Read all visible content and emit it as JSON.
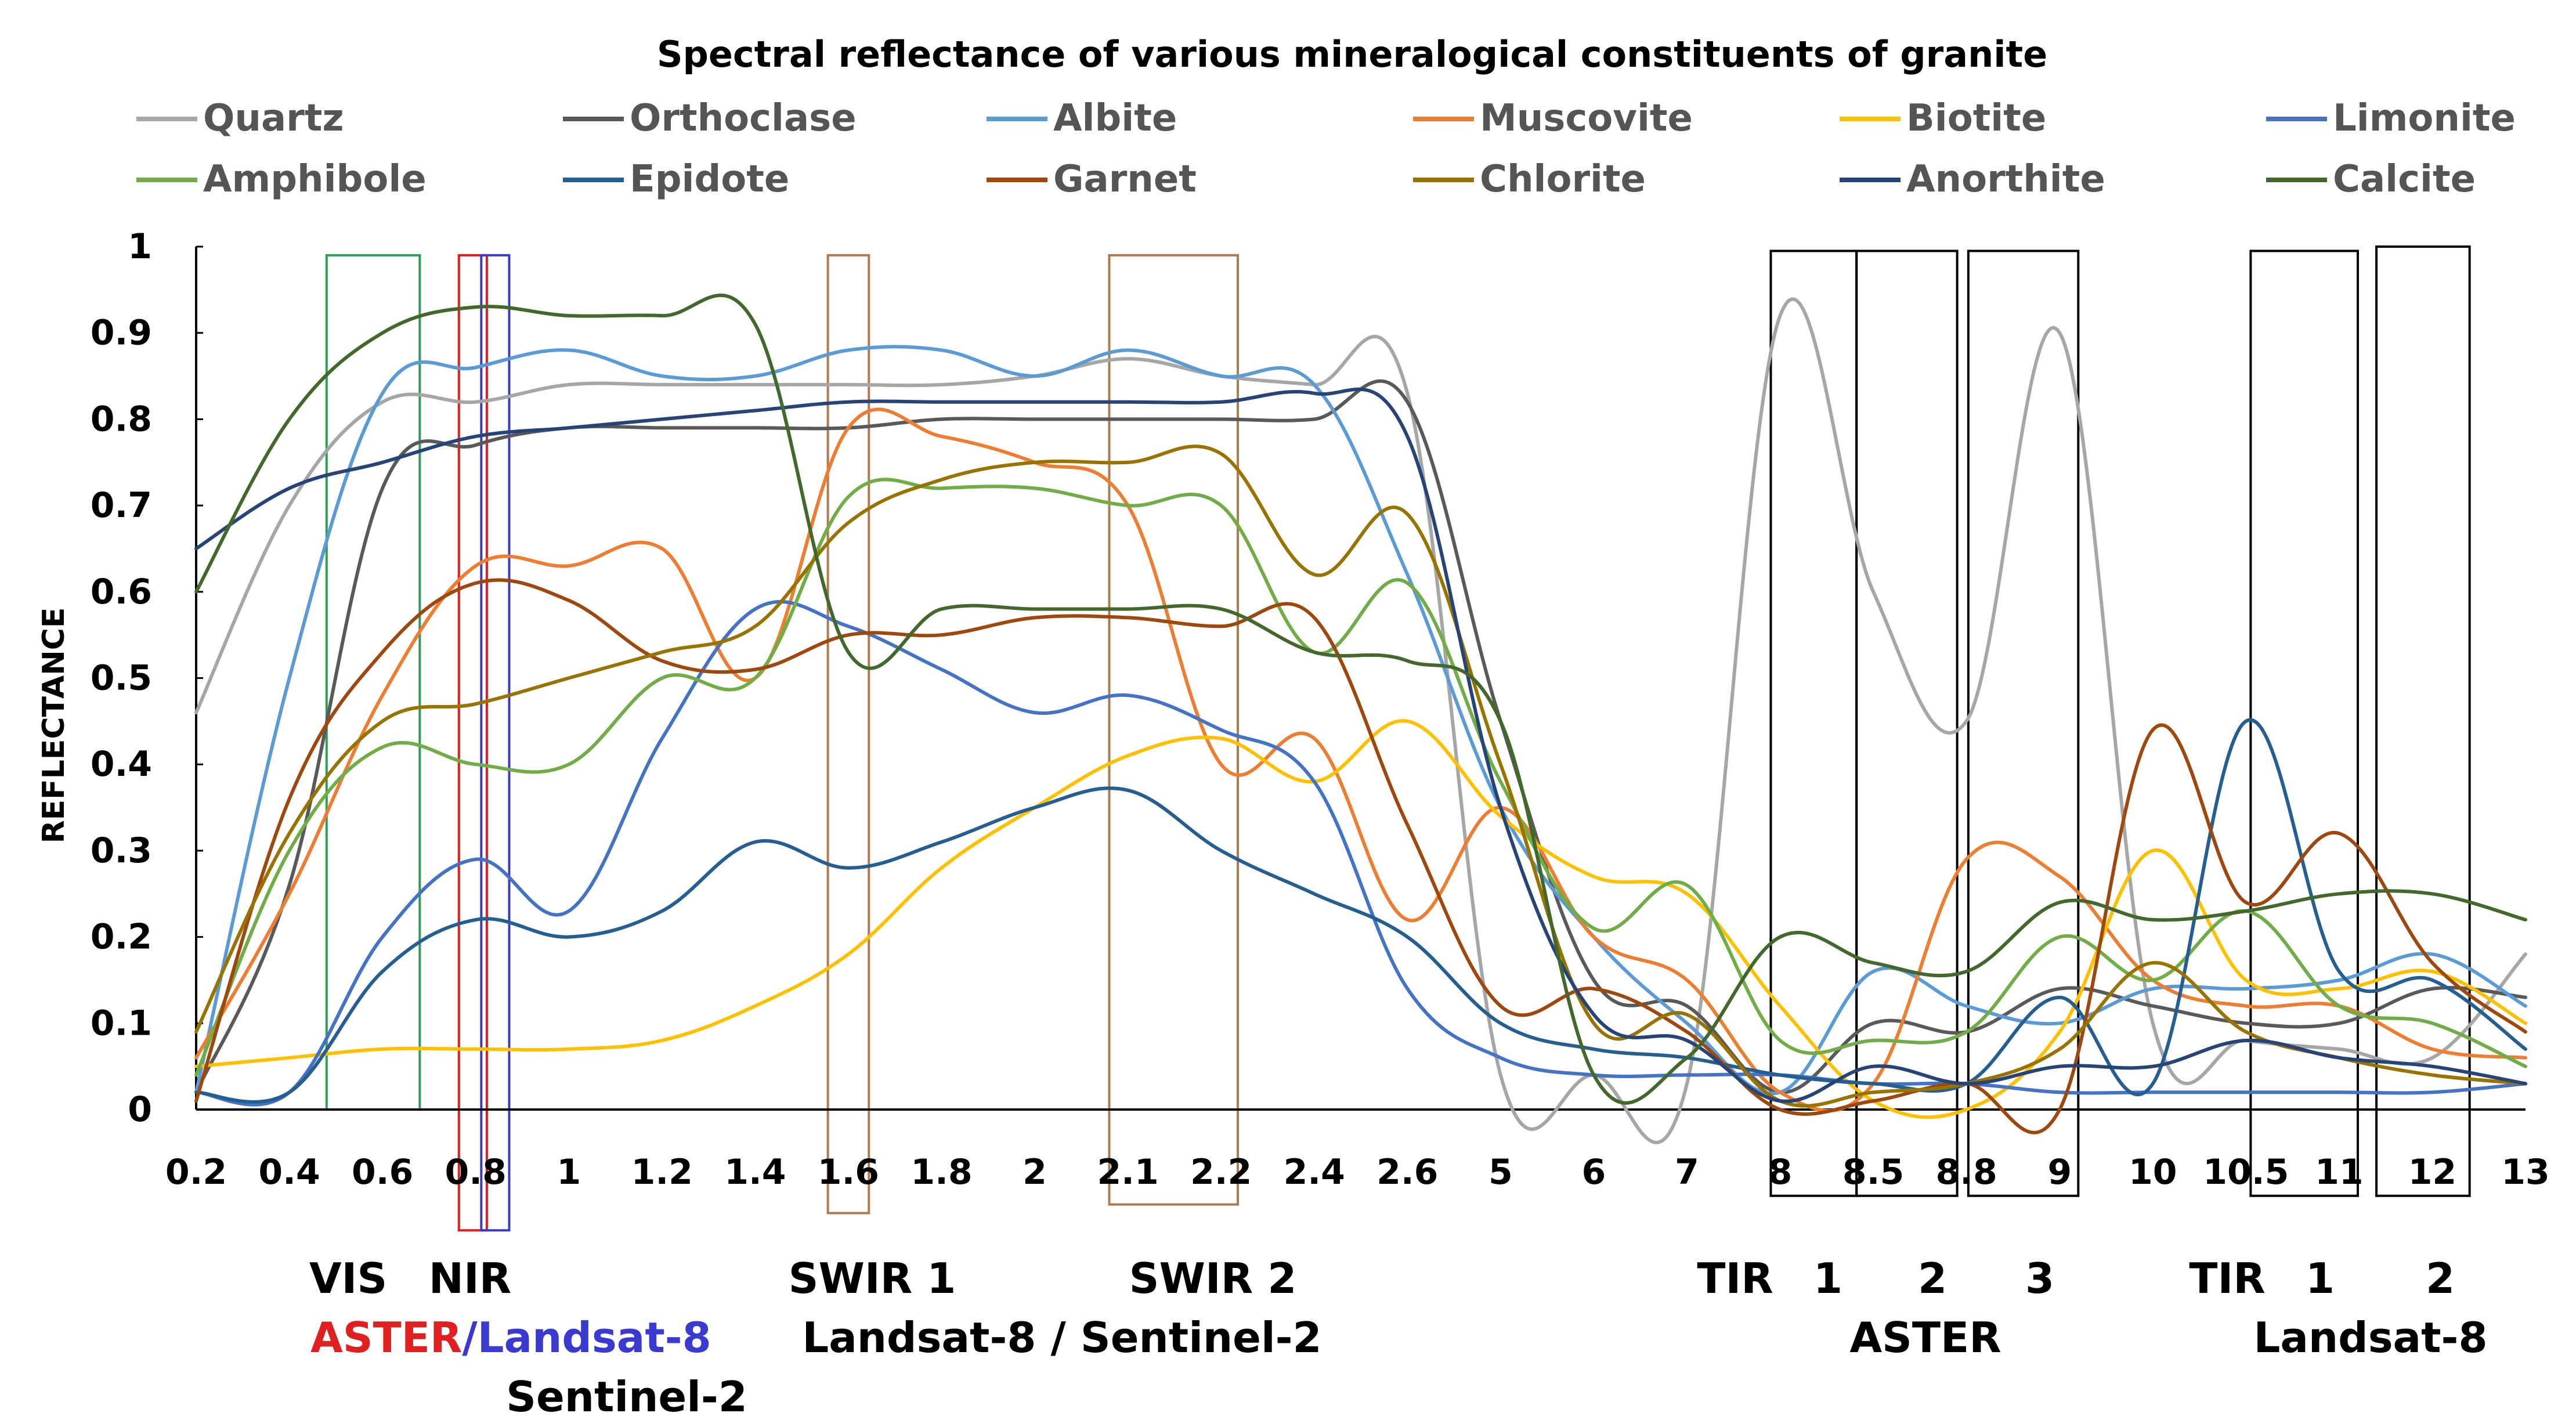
{
  "chart_data": {
    "type": "line",
    "title": "Spectral reflectance of various mineralogical constituents of granite",
    "ylabel": "REFLECTANCE",
    "xlabel": "",
    "ylim": [
      0,
      1
    ],
    "y_ticks": [
      "0",
      "0.1",
      "0.2",
      "0.3",
      "0.4",
      "0.5",
      "0.6",
      "0.7",
      "0.8",
      "0.9",
      "1"
    ],
    "x_ticks": [
      "0.2",
      "0.4",
      "0.6",
      "0.8",
      "1",
      "1.2",
      "1.4",
      "1.6",
      "1.8",
      "2",
      "2.1",
      "2.2",
      "2.4",
      "2.6",
      "5",
      "6",
      "7",
      "8",
      "8.5",
      "8.8",
      "9",
      "10",
      "10.5",
      "11",
      "12",
      "13"
    ],
    "legend_position": "top",
    "grid": false,
    "series": [
      {
        "name": "Quartz",
        "color": "#a6a6a6",
        "values": [
          0.46,
          0.7,
          0.82,
          0.82,
          0.84,
          0.84,
          0.84,
          0.84,
          0.84,
          0.85,
          0.87,
          0.85,
          0.84,
          0.83,
          0.04,
          0.04,
          0.03,
          0.92,
          0.6,
          0.45,
          0.9,
          0.1,
          0.08,
          0.07,
          0.06,
          0.18
        ]
      },
      {
        "name": "Orthoclase",
        "color": "#595959",
        "values": [
          0.02,
          0.26,
          0.72,
          0.77,
          0.79,
          0.79,
          0.79,
          0.79,
          0.8,
          0.8,
          0.8,
          0.8,
          0.8,
          0.82,
          0.45,
          0.15,
          0.12,
          0.02,
          0.1,
          0.09,
          0.14,
          0.12,
          0.1,
          0.1,
          0.14,
          0.13
        ]
      },
      {
        "name": "Albite",
        "color": "#5b9bd5",
        "values": [
          0.02,
          0.5,
          0.83,
          0.86,
          0.88,
          0.85,
          0.85,
          0.88,
          0.88,
          0.85,
          0.88,
          0.85,
          0.84,
          0.62,
          0.35,
          0.2,
          0.1,
          0.02,
          0.16,
          0.12,
          0.1,
          0.14,
          0.14,
          0.15,
          0.18,
          0.12
        ]
      },
      {
        "name": "Muscovite",
        "color": "#ed7d31",
        "values": [
          0.06,
          0.25,
          0.48,
          0.63,
          0.63,
          0.65,
          0.5,
          0.79,
          0.78,
          0.75,
          0.7,
          0.4,
          0.43,
          0.22,
          0.35,
          0.2,
          0.15,
          0.02,
          0.03,
          0.29,
          0.27,
          0.15,
          0.12,
          0.12,
          0.07,
          0.06
        ]
      },
      {
        "name": "Biotite",
        "color": "#ffc000",
        "values": [
          0.05,
          0.06,
          0.07,
          0.07,
          0.07,
          0.08,
          0.12,
          0.18,
          0.28,
          0.35,
          0.41,
          0.43,
          0.38,
          0.45,
          0.34,
          0.27,
          0.25,
          0.12,
          0.01,
          0.0,
          0.09,
          0.3,
          0.15,
          0.14,
          0.16,
          0.1
        ]
      },
      {
        "name": "Limonite",
        "color": "#4472c4",
        "values": [
          0.02,
          0.02,
          0.2,
          0.29,
          0.23,
          0.43,
          0.58,
          0.56,
          0.51,
          0.46,
          0.48,
          0.44,
          0.38,
          0.14,
          0.06,
          0.04,
          0.04,
          0.04,
          0.03,
          0.03,
          0.02,
          0.02,
          0.02,
          0.02,
          0.02,
          0.03
        ]
      },
      {
        "name": "Amphibole",
        "color": "#70ad47",
        "values": [
          0.04,
          0.3,
          0.42,
          0.4,
          0.4,
          0.5,
          0.5,
          0.71,
          0.72,
          0.72,
          0.7,
          0.7,
          0.53,
          0.61,
          0.38,
          0.21,
          0.26,
          0.08,
          0.08,
          0.09,
          0.2,
          0.15,
          0.23,
          0.12,
          0.1,
          0.05
        ]
      },
      {
        "name": "Epidote",
        "color": "#255e91",
        "values": [
          0.02,
          0.02,
          0.16,
          0.22,
          0.2,
          0.23,
          0.31,
          0.28,
          0.31,
          0.35,
          0.37,
          0.3,
          0.25,
          0.2,
          0.1,
          0.07,
          0.06,
          0.04,
          0.03,
          0.03,
          0.13,
          0.03,
          0.45,
          0.16,
          0.15,
          0.07
        ]
      },
      {
        "name": "Garnet",
        "color": "#9e480e",
        "values": [
          0.01,
          0.36,
          0.53,
          0.61,
          0.59,
          0.52,
          0.51,
          0.55,
          0.55,
          0.57,
          0.57,
          0.56,
          0.57,
          0.33,
          0.12,
          0.14,
          0.09,
          0.0,
          0.01,
          0.03,
          0.0,
          0.44,
          0.24,
          0.32,
          0.17,
          0.09
        ]
      },
      {
        "name": "Chlorite",
        "color": "#997300",
        "values": [
          0.09,
          0.32,
          0.45,
          0.47,
          0.5,
          0.53,
          0.56,
          0.68,
          0.73,
          0.75,
          0.75,
          0.76,
          0.62,
          0.69,
          0.4,
          0.1,
          0.11,
          0.01,
          0.02,
          0.03,
          0.07,
          0.17,
          0.09,
          0.06,
          0.04,
          0.03
        ]
      },
      {
        "name": "Anorthite",
        "color": "#264478",
        "values": [
          0.65,
          0.72,
          0.75,
          0.78,
          0.79,
          0.8,
          0.81,
          0.82,
          0.82,
          0.82,
          0.82,
          0.82,
          0.83,
          0.78,
          0.35,
          0.11,
          0.08,
          0.01,
          0.05,
          0.03,
          0.05,
          0.05,
          0.08,
          0.06,
          0.05,
          0.03
        ]
      },
      {
        "name": "Calcite",
        "color": "#43682b",
        "values": [
          0.6,
          0.8,
          0.9,
          0.93,
          0.92,
          0.92,
          0.91,
          0.53,
          0.58,
          0.58,
          0.58,
          0.58,
          0.53,
          0.52,
          0.45,
          0.04,
          0.06,
          0.2,
          0.17,
          0.16,
          0.24,
          0.22,
          0.23,
          0.25,
          0.25,
          0.22
        ]
      }
    ],
    "band_groups": [
      {
        "labels": [
          "VIS",
          "NIR"
        ],
        "sensor_labels": [
          "ASTER",
          "/Landsat-8",
          "Sentinel-2"
        ]
      },
      {
        "labels": [
          "SWIR 1",
          "SWIR 2"
        ],
        "sensor_labels": [
          "Landsat-8 / Sentinel-2"
        ]
      },
      {
        "labels": [
          "TIR",
          "1",
          "2",
          "3"
        ],
        "sensor_labels": [
          "ASTER"
        ]
      },
      {
        "labels": [
          "TIR",
          "1",
          "2"
        ],
        "sensor_labels": [
          "Landsat-8"
        ]
      }
    ],
    "sensor_colors": {
      "ASTER": "#e02020",
      "Landsat-8": "#3a3ad0",
      "Sentinel-2": "#6a5acd",
      "VIS": "#2e9e56",
      "SWIR": "#b07a50"
    }
  }
}
